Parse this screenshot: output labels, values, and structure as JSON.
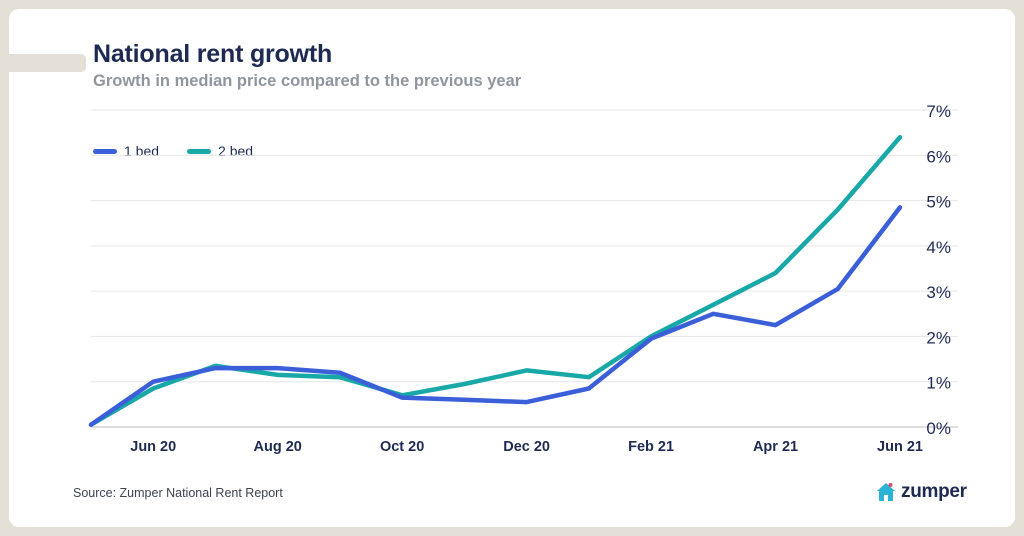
{
  "header": {
    "title": "National rent growth",
    "subtitle": "Growth in median price compared to the previous year"
  },
  "footer": {
    "source": "Source: Zumper National Rent Report",
    "logo_text": "zumper",
    "logo_icon": "house-icon"
  },
  "colors": {
    "one_bed": "#3a5fd9",
    "two_bed": "#17a8a7",
    "text_dark": "#1e2a52",
    "grid": "#e6e6e6",
    "logo_house": "#2bb3d6",
    "logo_heart": "#e8436b"
  },
  "chart_data": {
    "type": "line",
    "title": "National rent growth",
    "subtitle": "Growth in median price compared to the previous year",
    "x": [
      "2020-05",
      "2020-06",
      "2020-07",
      "2020-08",
      "2020-09",
      "2020-10",
      "2020-11",
      "2020-12",
      "2021-01",
      "2021-02",
      "2021-03",
      "2021-04",
      "2021-05",
      "2021-06"
    ],
    "x_tick_labels": [
      {
        "x": "2020-06",
        "label": "Jun 20"
      },
      {
        "x": "2020-08",
        "label": "Aug 20"
      },
      {
        "x": "2020-10",
        "label": "Oct 20"
      },
      {
        "x": "2020-12",
        "label": "Dec 20"
      },
      {
        "x": "2021-02",
        "label": "Feb 21"
      },
      {
        "x": "2021-04",
        "label": "Apr 21"
      },
      {
        "x": "2021-06",
        "label": "Jun 21"
      }
    ],
    "y_ticks": [
      {
        "value": 0,
        "label": "0%"
      },
      {
        "value": 1,
        "label": "1%"
      },
      {
        "value": 2,
        "label": "2%"
      },
      {
        "value": 3,
        "label": "3%"
      },
      {
        "value": 4,
        "label": "4%"
      },
      {
        "value": 5,
        "label": "5%"
      },
      {
        "value": 6,
        "label": "6%"
      },
      {
        "value": 7,
        "label": "7%"
      }
    ],
    "ylim": [
      0,
      7
    ],
    "y_axis_position": "right",
    "grid": true,
    "legend_position": "top-left",
    "series": [
      {
        "name": "1 bed",
        "values": [
          0.05,
          1.0,
          1.3,
          1.3,
          1.2,
          0.65,
          0.6,
          0.55,
          0.85,
          1.95,
          2.5,
          2.25,
          3.05,
          4.85
        ]
      },
      {
        "name": "2 bed",
        "values": [
          0.05,
          0.85,
          1.35,
          1.15,
          1.1,
          0.7,
          0.95,
          1.25,
          1.1,
          2.0,
          2.7,
          3.4,
          4.8,
          6.4
        ]
      }
    ]
  }
}
